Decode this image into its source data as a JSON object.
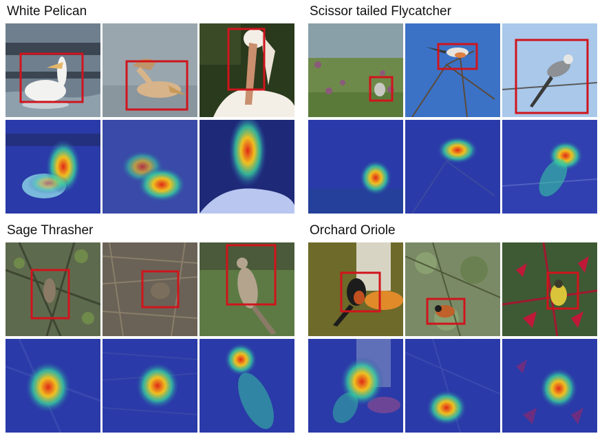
{
  "figure": {
    "groups": [
      {
        "title": "White Pelican",
        "originals": [
          {
            "scene": "pelican swimming in dark water",
            "bg": "#6f7f8e",
            "bird": "#f2f2f0",
            "box": true
          },
          {
            "scene": "tan pelican in flight over grey water",
            "bg": "#9aa6ad",
            "bird": "#d8b48a",
            "box": true
          },
          {
            "scene": "close-up of pelican head and bill",
            "bg": "#2a3a1c",
            "bird": "#f4efe6",
            "box": true
          }
        ],
        "attention": [
          {
            "scene": "attention heat map on swimming pelican"
          },
          {
            "scene": "attention heat map on flying pelican"
          },
          {
            "scene": "attention heat map on pelican bill"
          }
        ]
      },
      {
        "title": "Scissor tailed Flycatcher",
        "originals": [
          {
            "scene": "small bird perched in meadow",
            "bg": "#6e8a4a",
            "bird": "#c9c9c4",
            "box": true
          },
          {
            "scene": "flycatcher on bare branch against blue sky",
            "bg": "#3b72c6",
            "bird": "#e7e4de",
            "box": true
          },
          {
            "scene": "flycatcher on wire against pale sky",
            "bg": "#a9c8ea",
            "bird": "#8d9094",
            "box": true
          }
        ],
        "attention": [
          {
            "scene": "attention heat map on perched flycatcher"
          },
          {
            "scene": "attention heat map on flycatcher on branch"
          },
          {
            "scene": "attention heat map on flycatcher on wire"
          }
        ]
      },
      {
        "title": "Sage Thrasher",
        "originals": [
          {
            "scene": "thrasher among leafy branches",
            "bg": "#5e6a4e",
            "bird": "#8a7a66",
            "box": true
          },
          {
            "scene": "thrasher on dry brush ground",
            "bg": "#6a6256",
            "bird": "#7c6e5c",
            "box": true
          },
          {
            "scene": "thrasher perched on shrub",
            "bg": "#5d7a44",
            "bird": "#b4a48e",
            "box": true
          }
        ],
        "attention": [
          {
            "scene": "attention heat map on thrasher in branches"
          },
          {
            "scene": "attention heat map on thrasher on ground"
          },
          {
            "scene": "attention heat map on perched thrasher"
          }
        ]
      },
      {
        "title": "Orchard Oriole",
        "originals": [
          {
            "scene": "oriole at orange feeder",
            "bg": "#6d6a2a",
            "bird": "#1c1c1c",
            "box": true
          },
          {
            "scene": "oriole among green foliage",
            "bg": "#7a8a66",
            "bird": "#c0602a",
            "box": true
          },
          {
            "scene": "yellow oriole among red flowers",
            "bg": "#3e5a34",
            "bird": "#d9c43a",
            "box": true
          }
        ],
        "attention": [
          {
            "scene": "attention heat map on oriole at feeder"
          },
          {
            "scene": "attention heat map on oriole in foliage"
          },
          {
            "scene": "attention heat map on oriole in flowers"
          }
        ]
      }
    ],
    "colors": {
      "bbox": "#d0141c",
      "heat_low": "#2a3aa8",
      "heat_mid": "#36d0a0",
      "heat_high": "#e02818"
    }
  }
}
